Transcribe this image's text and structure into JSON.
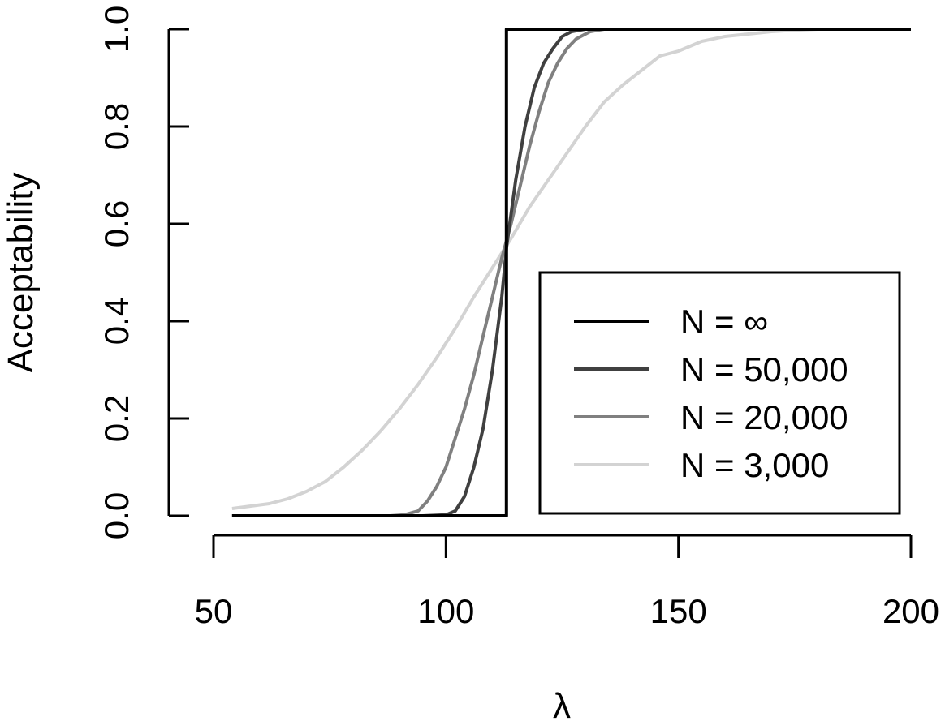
{
  "chart_data": {
    "type": "line",
    "title": "",
    "xlabel": "λ",
    "ylabel": "Acceptability",
    "xlim": [
      50,
      200
    ],
    "ylim": [
      0,
      1
    ],
    "x_ticks": [
      "50",
      "100",
      "150",
      "200"
    ],
    "y_ticks": [
      "0.0",
      "0.2",
      "0.4",
      "0.6",
      "0.8",
      "1.0"
    ],
    "grid": false,
    "legend_position": "bottom-right",
    "series": [
      {
        "name": "N = ∞",
        "color": "#000000",
        "x": [
          54,
          113,
          113,
          200
        ],
        "y": [
          0,
          0,
          1,
          1
        ]
      },
      {
        "name": "N = 50,000",
        "color": "#404040",
        "x": [
          54,
          95,
          100,
          102,
          104,
          106,
          108,
          110,
          112,
          113,
          115,
          117,
          119,
          121,
          123,
          125,
          127,
          130,
          200
        ],
        "y": [
          0,
          0,
          0.002,
          0.01,
          0.04,
          0.1,
          0.18,
          0.3,
          0.45,
          0.55,
          0.69,
          0.8,
          0.88,
          0.93,
          0.96,
          0.985,
          0.995,
          1,
          1
        ]
      },
      {
        "name": "N = 20,000",
        "color": "#808080",
        "x": [
          54,
          88,
          91,
          94,
          96,
          98,
          100,
          102,
          104,
          106,
          108,
          110,
          112,
          114,
          116,
          118,
          120,
          122,
          124,
          126,
          128,
          131,
          134,
          200
        ],
        "y": [
          0,
          0,
          0.002,
          0.01,
          0.03,
          0.06,
          0.1,
          0.16,
          0.22,
          0.29,
          0.37,
          0.45,
          0.53,
          0.6,
          0.68,
          0.76,
          0.83,
          0.89,
          0.93,
          0.96,
          0.98,
          0.995,
          1,
          1
        ]
      },
      {
        "name": "N = 3,000",
        "color": "#d3d3d3",
        "x": [
          54,
          58,
          62,
          66,
          70,
          74,
          78,
          82,
          86,
          90,
          94,
          98,
          102,
          106,
          110,
          114,
          118,
          122,
          126,
          130,
          134,
          138,
          142,
          146,
          150,
          155,
          160,
          165,
          170,
          175,
          180,
          190,
          200
        ],
        "y": [
          0.015,
          0.02,
          0.025,
          0.035,
          0.05,
          0.07,
          0.1,
          0.135,
          0.175,
          0.22,
          0.27,
          0.325,
          0.385,
          0.45,
          0.51,
          0.57,
          0.635,
          0.69,
          0.745,
          0.8,
          0.85,
          0.885,
          0.915,
          0.945,
          0.955,
          0.975,
          0.985,
          0.99,
          0.995,
          0.998,
          1,
          1,
          1
        ]
      }
    ]
  }
}
